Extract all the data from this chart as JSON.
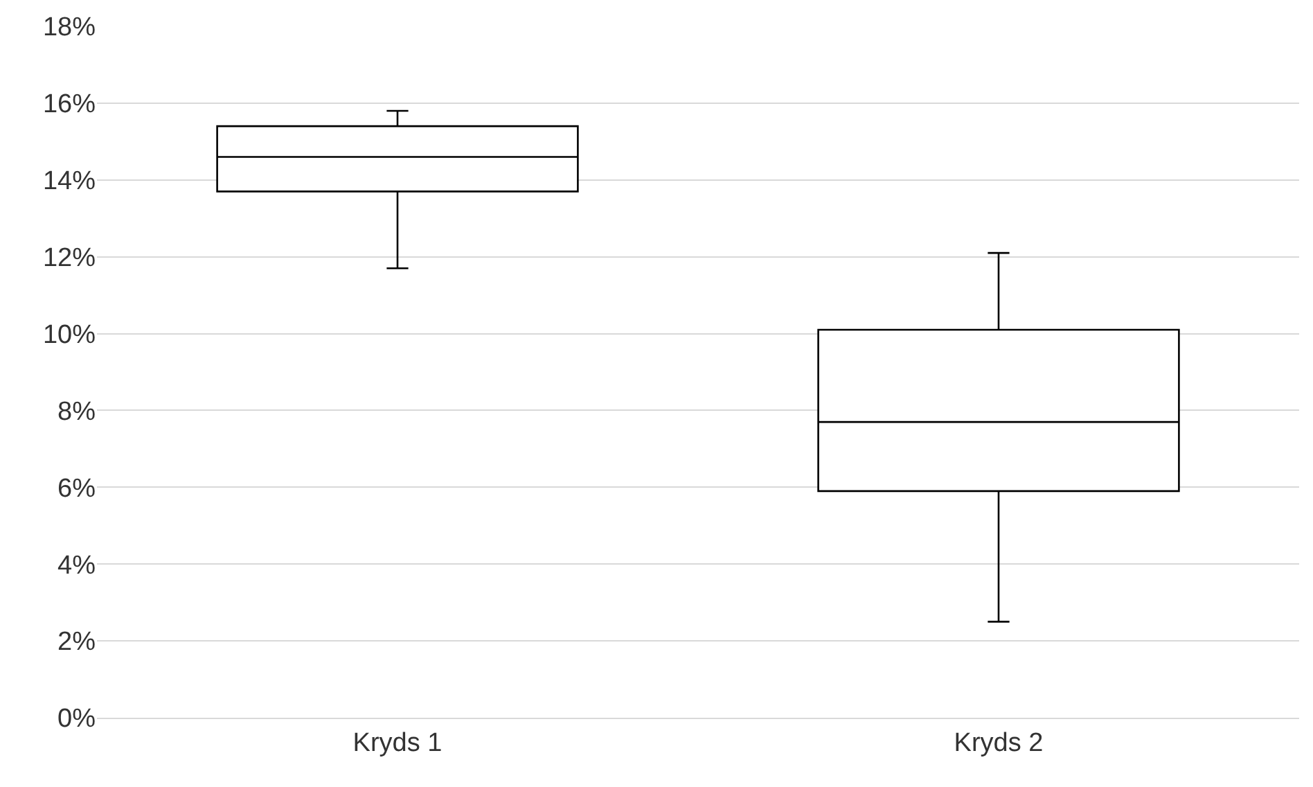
{
  "chart_data": {
    "type": "box",
    "categories": [
      "Kryds 1",
      "Kryds 2"
    ],
    "boxes": [
      {
        "low": 11.7,
        "q1": 13.7,
        "median": 14.6,
        "q3": 15.4,
        "high": 15.8
      },
      {
        "low": 2.5,
        "q1": 5.9,
        "median": 7.7,
        "q3": 10.1,
        "high": 12.1
      }
    ],
    "color": "#000000",
    "ylim": [
      0,
      18
    ],
    "yticks": [
      {
        "value": 0,
        "label": "0%"
      },
      {
        "value": 2,
        "label": "2%"
      },
      {
        "value": 4,
        "label": "4%"
      },
      {
        "value": 6,
        "label": "6%"
      },
      {
        "value": 8,
        "label": "8%"
      },
      {
        "value": 10,
        "label": "10%"
      },
      {
        "value": 12,
        "label": "12%"
      },
      {
        "value": 14,
        "label": "14%"
      },
      {
        "value": 16,
        "label": "16%"
      },
      {
        "value": 18,
        "label": "18%"
      }
    ],
    "grid": "y",
    "legend": false
  }
}
